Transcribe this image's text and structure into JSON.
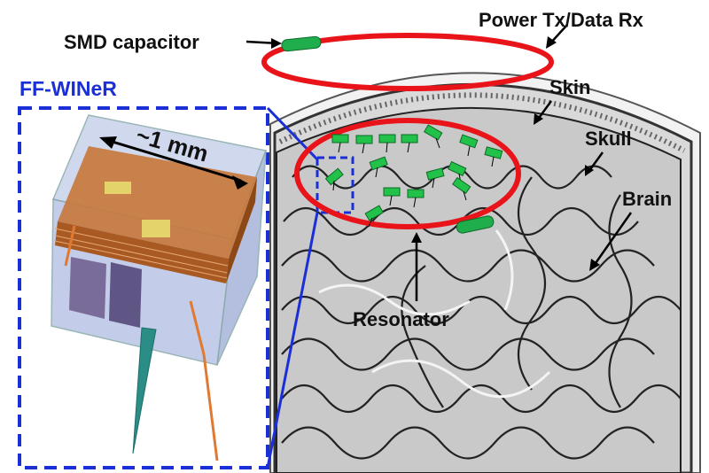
{
  "labels": {
    "power_tx": "Power Tx/Data Rx",
    "smd_capacitor": "SMD capacitor",
    "ff_winer": "FF-WINeR",
    "skin": "Skin",
    "skull": "Skull",
    "brain": "Brain",
    "resonator": "Resonator",
    "dimension": "~1 mm"
  },
  "colors": {
    "coil_red": "#e8141a",
    "capacitor_green": "#1fae4b",
    "box_blue": "#1a2fd6",
    "copper": "#b8642a",
    "implant_green": "#22c24a"
  }
}
